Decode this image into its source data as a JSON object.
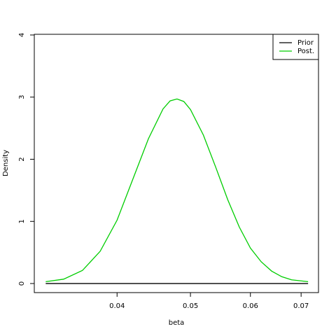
{
  "chart_data": {
    "type": "line",
    "xlabel": "beta",
    "ylabel": "Density",
    "xscale": "log",
    "xlim": [
      0.0311,
      0.0738
    ],
    "ylim": [
      -0.146,
      4.011
    ],
    "xticks": [
      0.04,
      0.05,
      0.06,
      0.07
    ],
    "yticks": [
      0,
      1,
      2,
      3,
      4
    ],
    "legend": "top-right",
    "series": [
      {
        "name": "Prior",
        "color": "#000000",
        "x": [
          0.0322,
          0.0715
        ],
        "values": [
          0,
          0
        ]
      },
      {
        "name": "Post.",
        "color": "#00cd00",
        "x": [
          0.0322,
          0.034,
          0.036,
          0.038,
          0.04,
          0.042,
          0.044,
          0.046,
          0.047,
          0.048,
          0.049,
          0.05,
          0.052,
          0.054,
          0.056,
          0.058,
          0.06,
          0.062,
          0.064,
          0.066,
          0.068,
          0.0715
        ],
        "values": [
          0.03,
          0.07,
          0.21,
          0.52,
          1.02,
          1.69,
          2.33,
          2.81,
          2.94,
          2.97,
          2.93,
          2.8,
          2.39,
          1.87,
          1.35,
          0.91,
          0.57,
          0.35,
          0.2,
          0.11,
          0.06,
          0.03
        ]
      }
    ]
  }
}
